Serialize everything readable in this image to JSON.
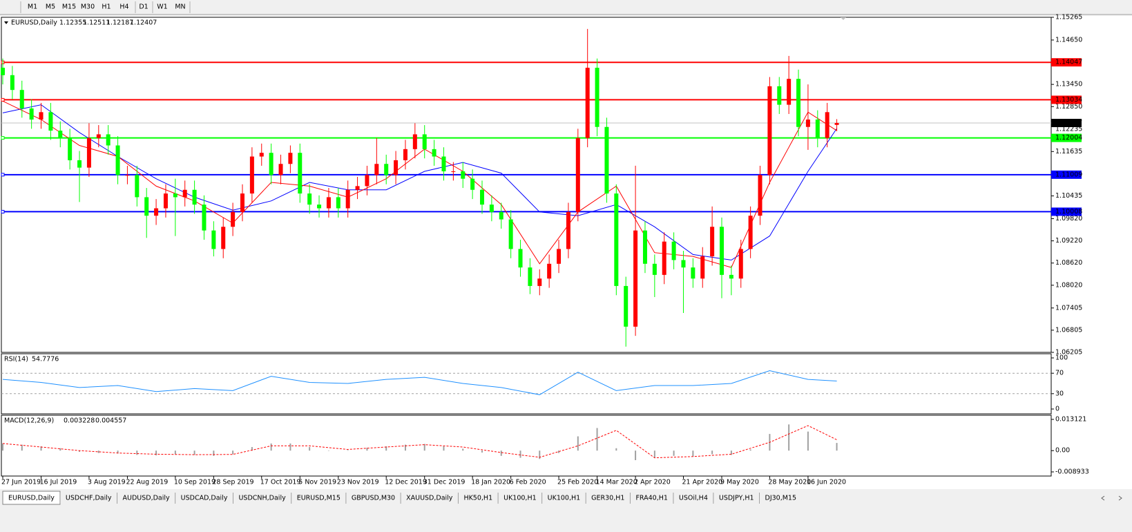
{
  "toolbar": {
    "timeframes": [
      "M1",
      "M5",
      "M15",
      "M30",
      "H1",
      "H4",
      "D1",
      "W1",
      "MN"
    ]
  },
  "chart_data": [
    {
      "type": "candlestick",
      "title": "EURUSD,Daily",
      "categories": [
        "27 Jun 2019",
        null,
        null,
        null,
        "16 Jul 2019",
        null,
        null,
        null,
        null,
        "3 Aug 2019",
        null,
        null,
        null,
        "22 Aug 2019",
        null,
        null,
        null,
        null,
        "10 Sep 2019",
        null,
        null,
        null,
        "28 Sep 2019",
        null,
        null,
        null,
        null,
        "17 Oct 2019",
        null,
        null,
        null,
        "5 Nov 2019",
        null,
        null,
        null,
        "23 Nov 2019",
        null,
        null,
        null,
        null,
        "12 Dec 2019",
        null,
        null,
        null,
        "31 Dec 2019",
        null,
        null,
        null,
        null,
        "18 Jan 2020",
        null,
        null,
        null,
        "6 Feb 2020",
        null,
        null,
        null,
        null,
        "25 Feb 2020",
        null,
        null,
        null,
        "14 Mar 2020",
        null,
        null,
        null,
        "2 Apr 2020",
        null,
        null,
        null,
        null,
        "21 Apr 2020",
        null,
        null,
        null,
        "9 May 2020",
        null,
        null,
        null,
        null,
        "28 May 2020",
        null,
        null,
        null,
        "16 Jun 2020",
        null,
        null,
        null
      ],
      "candles": [
        [
          1.139,
          1.1415,
          1.1345,
          1.137
        ],
        [
          1.137,
          1.1395,
          1.1305,
          1.133
        ],
        [
          1.133,
          1.1355,
          1.1255,
          1.128
        ],
        [
          1.128,
          1.1305,
          1.1225,
          1.125
        ],
        [
          1.125,
          1.1295,
          1.1225,
          1.127
        ],
        [
          1.127,
          1.1295,
          1.1195,
          1.122
        ],
        [
          1.122,
          1.1245,
          1.1175,
          1.12
        ],
        [
          1.12,
          1.1225,
          1.1115,
          1.114
        ],
        [
          1.114,
          1.1165,
          1.1027,
          1.112
        ],
        [
          1.112,
          1.124,
          1.1095,
          1.12
        ],
        [
          1.12,
          1.1235,
          1.1175,
          1.121
        ],
        [
          1.121,
          1.1235,
          1.1155,
          1.118
        ],
        [
          1.118,
          1.1205,
          1.1075,
          1.11
        ],
        [
          1.11,
          1.1125,
          1.1075,
          1.11
        ],
        [
          1.11,
          1.1125,
          1.1015,
          1.104
        ],
        [
          1.104,
          1.1065,
          1.093,
          1.099
        ],
        [
          1.099,
          1.1035,
          1.0965,
          1.101
        ],
        [
          1.101,
          1.1075,
          1.0985,
          1.105
        ],
        [
          1.105,
          1.109,
          1.0935,
          1.104
        ],
        [
          1.104,
          1.1085,
          1.1015,
          1.106
        ],
        [
          1.106,
          1.1085,
          1.0995,
          1.102
        ],
        [
          1.102,
          1.1045,
          1.0925,
          1.095
        ],
        [
          1.095,
          1.0975,
          1.088,
          1.09
        ],
        [
          1.09,
          1.0985,
          1.0875,
          1.096
        ],
        [
          1.096,
          1.1025,
          1.0935,
          1.1
        ],
        [
          1.1,
          1.1075,
          1.0975,
          1.105
        ],
        [
          1.105,
          1.1175,
          1.1025,
          1.115
        ],
        [
          1.115,
          1.1185,
          1.1125,
          1.116
        ],
        [
          1.116,
          1.1185,
          1.1075,
          1.11
        ],
        [
          1.11,
          1.1155,
          1.1075,
          1.113
        ],
        [
          1.113,
          1.118,
          1.1105,
          1.116
        ],
        [
          1.116,
          1.1185,
          1.1025,
          1.105
        ],
        [
          1.105,
          1.1075,
          1.0995,
          1.102
        ],
        [
          1.102,
          1.1045,
          1.0985,
          1.101
        ],
        [
          1.101,
          1.1065,
          1.0985,
          1.104
        ],
        [
          1.104,
          1.1065,
          1.0985,
          1.101
        ],
        [
          1.101,
          1.1085,
          1.0985,
          1.106
        ],
        [
          1.106,
          1.1095,
          1.1035,
          1.107
        ],
        [
          1.107,
          1.1125,
          1.1045,
          1.11
        ],
        [
          1.11,
          1.12,
          1.1075,
          1.113
        ],
        [
          1.113,
          1.1155,
          1.1075,
          1.11
        ],
        [
          1.11,
          1.1165,
          1.1075,
          1.114
        ],
        [
          1.114,
          1.1195,
          1.1115,
          1.117
        ],
        [
          1.117,
          1.124,
          1.1145,
          1.121
        ],
        [
          1.121,
          1.1235,
          1.1145,
          1.117
        ],
        [
          1.117,
          1.1195,
          1.1125,
          1.115
        ],
        [
          1.115,
          1.1175,
          1.1085,
          1.111
        ],
        [
          1.111,
          1.1135,
          1.1085,
          1.111
        ],
        [
          1.111,
          1.1135,
          1.1065,
          1.109
        ],
        [
          1.109,
          1.1115,
          1.1035,
          1.106
        ],
        [
          1.106,
          1.1085,
          1.0995,
          1.102
        ],
        [
          1.102,
          1.1045,
          1.0975,
          1.1
        ],
        [
          1.1,
          1.1025,
          1.0955,
          1.098
        ],
        [
          1.098,
          1.1005,
          1.0875,
          1.09
        ],
        [
          1.09,
          1.0925,
          1.0825,
          1.085
        ],
        [
          1.085,
          1.0875,
          1.0778,
          1.08
        ],
        [
          1.08,
          1.0845,
          1.0775,
          1.082
        ],
        [
          1.082,
          1.0885,
          1.0795,
          1.086
        ],
        [
          1.086,
          1.0925,
          1.0835,
          1.09
        ],
        [
          1.09,
          1.1025,
          1.0875,
          1.1
        ],
        [
          1.1,
          1.1225,
          1.0975,
          1.12
        ],
        [
          1.12,
          1.1495,
          1.1175,
          1.139
        ],
        [
          1.139,
          1.1415,
          1.1205,
          1.123
        ],
        [
          1.123,
          1.1255,
          1.1025,
          1.105
        ],
        [
          1.105,
          1.1075,
          1.0775,
          1.08
        ],
        [
          1.08,
          1.0825,
          1.0636,
          1.069
        ],
        [
          1.069,
          1.1125,
          1.0665,
          1.095
        ],
        [
          1.095,
          1.0975,
          1.0835,
          1.086
        ],
        [
          1.086,
          1.0885,
          1.077,
          1.083
        ],
        [
          1.083,
          1.0945,
          1.0805,
          1.092
        ],
        [
          1.092,
          1.0945,
          1.0845,
          1.087
        ],
        [
          1.087,
          1.0895,
          1.0727,
          1.085
        ],
        [
          1.085,
          1.0875,
          1.0795,
          1.082
        ],
        [
          1.082,
          1.0905,
          1.0795,
          1.088
        ],
        [
          1.088,
          1.1015,
          1.0855,
          1.096
        ],
        [
          1.096,
          1.0985,
          1.0767,
          1.083
        ],
        [
          1.083,
          1.0855,
          1.0775,
          1.082
        ],
        [
          1.082,
          1.0925,
          1.0795,
          1.09
        ],
        [
          1.09,
          1.1015,
          1.0875,
          1.099
        ],
        [
          1.099,
          1.1125,
          1.0965,
          1.11
        ],
        [
          1.11,
          1.1365,
          1.1075,
          1.134
        ],
        [
          1.134,
          1.1365,
          1.1265,
          1.129
        ],
        [
          1.129,
          1.1422,
          1.1265,
          1.136
        ],
        [
          1.136,
          1.1385,
          1.1205,
          1.123
        ],
        [
          1.123,
          1.1345,
          1.1168,
          1.125
        ],
        [
          1.125,
          1.1275,
          1.1175,
          1.12
        ],
        [
          1.12,
          1.1295,
          1.1175,
          1.127
        ],
        [
          1.12355,
          1.12511,
          1.12187,
          1.12407
        ]
      ],
      "up_color": "#ff0000",
      "down_color": "#00ff00",
      "series": [
        {
          "color": "#0000ff",
          "x": [
            0,
            4,
            8,
            12,
            16,
            20,
            24,
            28,
            32,
            36,
            40,
            44,
            48,
            52,
            56,
            60,
            64,
            68,
            72,
            76,
            80,
            84,
            87
          ],
          "values": [
            1.1268,
            1.129,
            1.1215,
            1.115,
            1.109,
            1.104,
            1.1005,
            1.103,
            1.108,
            1.106,
            1.106,
            1.111,
            1.1134,
            1.1105,
            1.1,
            1.099,
            1.102,
            1.096,
            1.0885,
            1.087,
            1.0935,
            1.111,
            1.1226
          ]
        },
        {
          "color": "#ff0000",
          "x": [
            0,
            4,
            8,
            12,
            16,
            20,
            24,
            28,
            32,
            36,
            40,
            44,
            48,
            52,
            56,
            60,
            64,
            68,
            72,
            76,
            80,
            84,
            87
          ],
          "values": [
            1.13,
            1.125,
            1.118,
            1.115,
            1.107,
            1.103,
            1.097,
            1.108,
            1.107,
            1.104,
            1.109,
            1.117,
            1.111,
            1.102,
            1.086,
            1.1,
            1.107,
            1.089,
            1.088,
            1.085,
            1.108,
            1.127,
            1.122
          ]
        }
      ],
      "levels": [
        {
          "value": 1.14047,
          "color": "#ff0000"
        },
        {
          "value": 1.13034,
          "color": "#ff0000"
        },
        {
          "value": 1.12004,
          "color": "#00ff00"
        },
        {
          "value": 1.11009,
          "color": "#0000ff"
        },
        {
          "value": 1.10008,
          "color": "#0000ff"
        }
      ],
      "marker": 1.12235,
      "ylim": [
        1.06205,
        1.15265
      ],
      "yticks": [
        1.15265,
        {
          "value": 1.1465,
          "label": "1.14650"
        },
        {
          "value": 1.1345,
          "label": "1.13450"
        },
        {
          "value": 1.1285,
          "label": "1.12850"
        },
        1.11635,
        1.10435,
        {
          "value": 1.0982,
          "label": "1.09820"
        },
        {
          "value": 1.0922,
          "label": "1.09220"
        },
        {
          "value": 1.0862,
          "label": "1.08620"
        },
        {
          "value": 1.0802,
          "label": "1.08020"
        },
        1.07405,
        1.06805,
        1.06205
      ]
    },
    {
      "type": "line",
      "title": "RSI(14)",
      "color": "#1e90ff",
      "x": [
        0,
        4,
        8,
        12,
        16,
        20,
        24,
        28,
        32,
        36,
        40,
        44,
        48,
        52,
        56,
        60,
        64,
        68,
        72,
        76,
        80,
        84,
        87
      ],
      "values": [
        58,
        52,
        42,
        46,
        34,
        40,
        36,
        64,
        52,
        50,
        58,
        62,
        50,
        42,
        28,
        72,
        36,
        46,
        46,
        50,
        75,
        58,
        54.7776
      ],
      "ylim": [
        0,
        100
      ],
      "yticks": [
        0,
        30,
        70,
        100
      ],
      "grid": "dashed"
    },
    {
      "type": "macd",
      "title": "MACD(12,26,9)",
      "hist_color": "#a0a0a0",
      "signal_color": "#ff0000",
      "hist_x": [
        0,
        2,
        4,
        6,
        8,
        10,
        12,
        14,
        16,
        18,
        20,
        22,
        24,
        26,
        28,
        30,
        32,
        34,
        36,
        38,
        40,
        42,
        44,
        46,
        48,
        50,
        52,
        54,
        56,
        58,
        60,
        62,
        64,
        66,
        68,
        70,
        72,
        74,
        76,
        78,
        80,
        82,
        84,
        87
      ],
      "hist": [
        0.003,
        0.0025,
        0.0018,
        0.001,
        -0.0005,
        -0.001,
        -0.0012,
        -0.0018,
        -0.002,
        -0.0015,
        -0.0018,
        -0.0022,
        -0.0015,
        0.0015,
        0.003,
        0.003,
        0.0015,
        0,
        0.0002,
        0.0012,
        0.0018,
        0.0025,
        0.0028,
        0.0018,
        0.0008,
        -0.0008,
        -0.0022,
        -0.003,
        -0.0035,
        -0.001,
        0.006,
        0.0095,
        0.001,
        -0.004,
        -0.003,
        -0.0022,
        -0.0025,
        -0.0015,
        -0.0018,
        0.0005,
        0.007,
        0.011,
        0.008,
        0.003228
      ],
      "signal_x": [
        0,
        4,
        8,
        12,
        16,
        20,
        24,
        28,
        32,
        36,
        40,
        44,
        48,
        52,
        56,
        60,
        64,
        68,
        72,
        76,
        80,
        84,
        87
      ],
      "signal": [
        0.003,
        0.0015,
        0,
        -0.001,
        -0.0015,
        -0.0017,
        -0.0016,
        0.002,
        0.002,
        0.0005,
        0.0015,
        0.0025,
        0.0015,
        -0.0008,
        -0.0028,
        0.002,
        0.0085,
        -0.003,
        -0.0025,
        -0.0015,
        0.0035,
        0.0105,
        0.004557
      ],
      "ylim": [
        -0.008933,
        0.013121
      ],
      "yticks": [
        0.013121,
        {
          "value": 0,
          "label": "0.00"
        },
        -0.008933
      ]
    }
  ],
  "tabs": [
    "EURUSD,Daily",
    "USDCHF,Daily",
    "AUDUSD,Daily",
    "USDCAD,Daily",
    "USDCNH,Daily",
    "EURUSD,M15",
    "GBPUSD,M30",
    "XAUUSD,Daily",
    "HK50,H1",
    "UK100,H1",
    "UK100,H1",
    "GER30,H1",
    "FRA40,H1",
    "USOil,H4",
    "USDJPY,H1",
    "DJ30,M15"
  ]
}
